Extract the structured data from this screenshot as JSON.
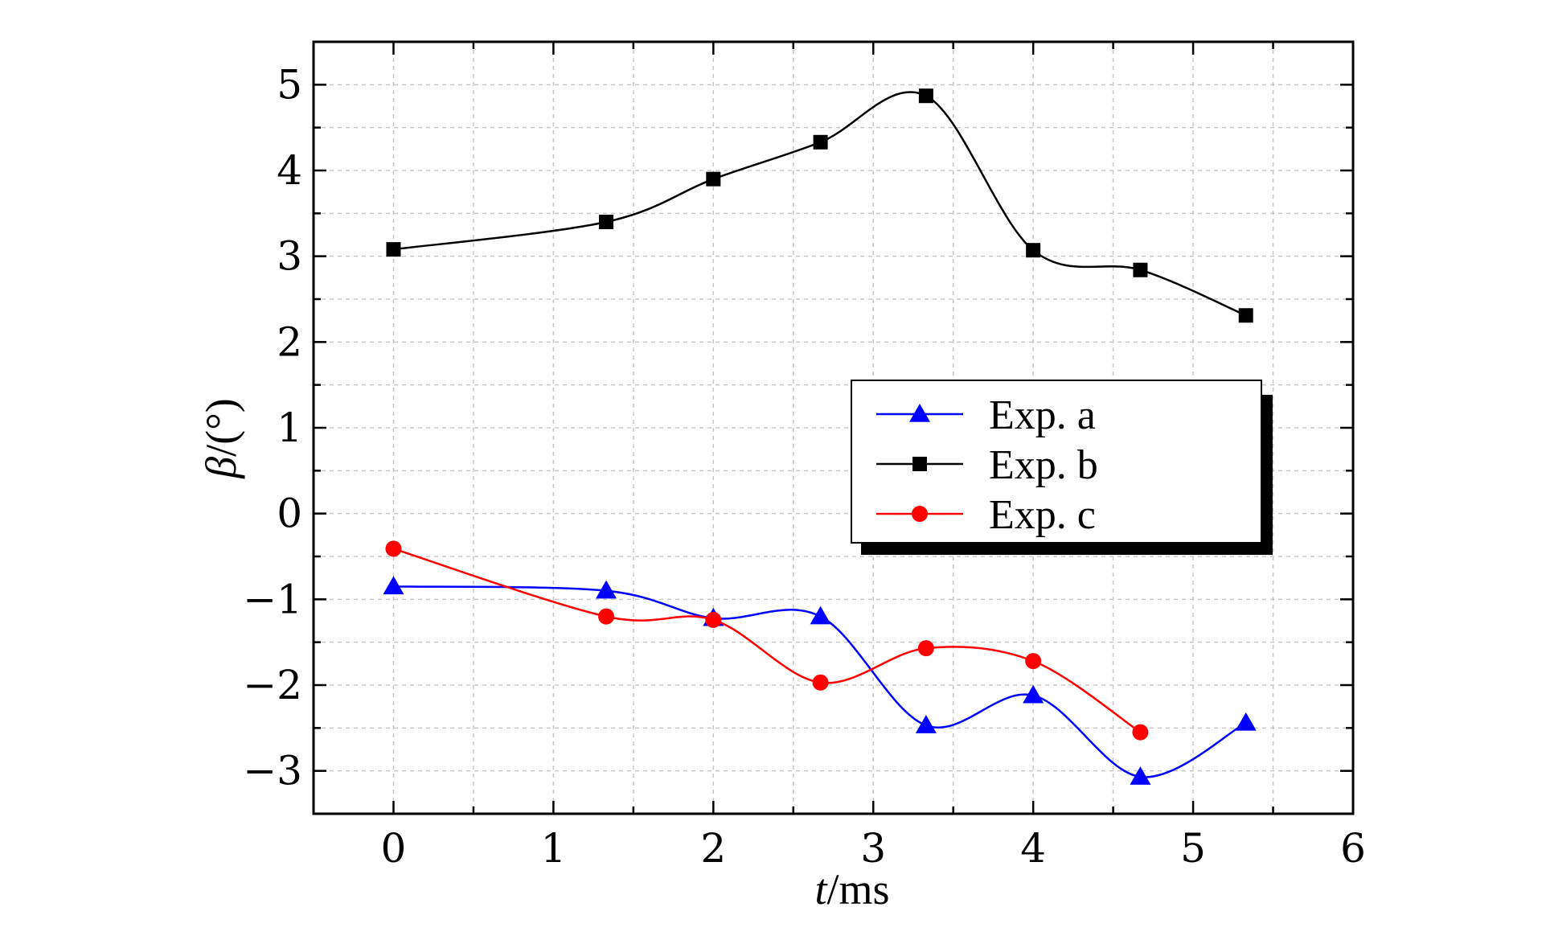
{
  "chart_data": {
    "type": "line",
    "title": "",
    "xlabel_italic": "t",
    "xlabel_rest": "/ms",
    "ylabel_italic": "β",
    "ylabel_rest": "/(°)",
    "xlim": [
      -0.5,
      6
    ],
    "ylim": [
      -3.5,
      5.5
    ],
    "x_ticks": [
      0,
      1,
      2,
      3,
      4,
      5,
      6
    ],
    "x_tick_labels": [
      "0",
      "1",
      "2",
      "3",
      "4",
      "5",
      "6"
    ],
    "y_ticks": [
      -3,
      -2,
      -1,
      0,
      1,
      2,
      3,
      4,
      5
    ],
    "y_tick_labels": [
      "−3",
      "−2",
      "−1",
      "0",
      "1",
      "2",
      "3",
      "4",
      "5"
    ],
    "grid": true,
    "legend_position": "center-right",
    "series": [
      {
        "name": "Exp. a",
        "color": "#0000ff",
        "marker": "triangle",
        "x": [
          0,
          1.33,
          2,
          2.67,
          3.33,
          4,
          4.67,
          5.33
        ],
        "y": [
          -0.85,
          -0.9,
          -1.22,
          -1.2,
          -2.47,
          -2.12,
          -3.07,
          -2.44
        ]
      },
      {
        "name": "Exp. b",
        "color": "#000000",
        "marker": "square",
        "x": [
          0,
          1.33,
          2,
          2.67,
          3.33,
          4,
          4.67,
          5.33
        ],
        "y": [
          3.08,
          3.4,
          3.9,
          4.33,
          4.87,
          3.07,
          2.84,
          2.31
        ]
      },
      {
        "name": "Exp. c",
        "color": "#ff0000",
        "marker": "circle",
        "x": [
          0,
          1.33,
          2,
          2.67,
          3.33,
          4,
          4.67
        ],
        "y": [
          -0.41,
          -1.2,
          -1.24,
          -1.97,
          -1.57,
          -1.72,
          -2.55
        ]
      }
    ]
  }
}
